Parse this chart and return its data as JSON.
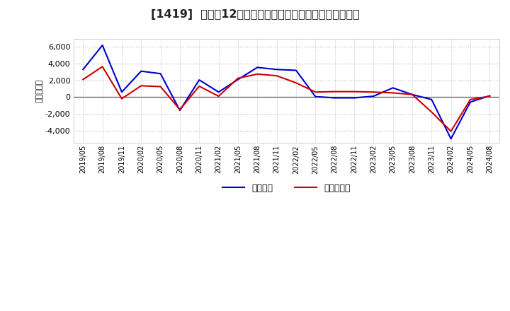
{
  "title": "[1419]  利益だ12か月移動合計の対前年同期増減額の推移",
  "ylabel": "（百万円）",
  "x_labels": [
    "2019/05",
    "2019/08",
    "2019/11",
    "2020/02",
    "2020/05",
    "2020/08",
    "2020/11",
    "2021/02",
    "2021/05",
    "2021/08",
    "2021/11",
    "2022/02",
    "2022/05",
    "2022/08",
    "2022/11",
    "2023/02",
    "2023/05",
    "2023/08",
    "2023/11",
    "2024/02",
    "2024/05",
    "2024/08"
  ],
  "operating_profit": [
    3300,
    6200,
    600,
    3100,
    2800,
    -1600,
    2050,
    600,
    2100,
    3550,
    3300,
    3200,
    50,
    -100,
    -100,
    100,
    1100,
    300,
    -300,
    -5000,
    -600,
    150
  ],
  "net_profit": [
    2100,
    3650,
    -200,
    1350,
    1250,
    -1500,
    1300,
    100,
    2250,
    2750,
    2550,
    1700,
    600,
    650,
    650,
    600,
    500,
    300,
    -1800,
    -4100,
    -300,
    100
  ],
  "line_color_operating": "#0000cc",
  "line_color_net": "#cc0000",
  "ylim_min": -5500,
  "ylim_max": 7000,
  "yticks": [
    -4000,
    -2000,
    0,
    2000,
    4000,
    6000
  ],
  "background_color": "#ffffff",
  "grid_color": "#aaaaaa",
  "legend_operating": "経常利益",
  "legend_net": "当期純利益",
  "title_fontsize": 11.5
}
